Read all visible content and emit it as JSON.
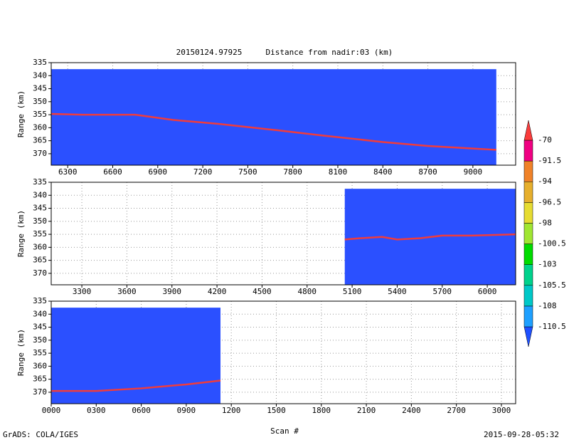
{
  "title": "20150124.97925     Distance from nadir:03 (km)",
  "x_label": "Scan #",
  "footer_left": "GrADS: COLA/IGES",
  "footer_right": "2015-09-28-05:32",
  "colorbar": {
    "levels": [
      -110.5,
      -108,
      -105.5,
      -103,
      -100.5,
      -98,
      -96.5,
      -94,
      -91.5,
      -70
    ],
    "colors": [
      "#1e50ff",
      "#1ea0ff",
      "#00c8c8",
      "#00d28c",
      "#00dc00",
      "#a0e632",
      "#e6dc32",
      "#e6af2d",
      "#f08228",
      "#f00082",
      "#fa3c3c"
    ]
  },
  "chart_data": [
    {
      "type": "line",
      "y_label": "Range (km)",
      "grid": true,
      "color": "#f03c3c",
      "field_color": "#2b50ff",
      "xlim": [
        6190,
        9285
      ],
      "ylim": [
        374.4,
        335
      ],
      "xticks": [
        6300,
        6600,
        6900,
        7200,
        7500,
        7800,
        8100,
        8400,
        8700,
        9000
      ],
      "yticks": [
        335,
        340,
        345,
        350,
        355,
        360,
        365,
        370
      ],
      "coverage": {
        "x": [
          6190,
          9156
        ],
        "y": [
          337.5,
          374.4
        ]
      },
      "x": [
        6190,
        6400,
        6750,
        7000,
        7300,
        7700,
        8000,
        8400,
        8700,
        9000,
        9156
      ],
      "values": [
        354.7,
        355,
        355,
        357,
        358.5,
        361,
        363,
        365.5,
        367,
        368,
        368.5
      ]
    },
    {
      "type": "line",
      "y_label": "Range (km)",
      "grid": true,
      "color": "#f03c3c",
      "field_color": "#2b50ff",
      "xlim": [
        3096,
        6189
      ],
      "ylim": [
        374.4,
        335
      ],
      "xticks": [
        3300,
        3600,
        3900,
        4200,
        4500,
        4800,
        5100,
        5400,
        5700,
        6000
      ],
      "yticks": [
        335,
        340,
        345,
        350,
        355,
        360,
        365,
        370
      ],
      "coverage": {
        "x": [
          5051,
          6189
        ],
        "y": [
          337.5,
          374.4
        ]
      },
      "x": [
        5051,
        5150,
        5300,
        5400,
        5550,
        5700,
        5900,
        6189
      ],
      "values": [
        357,
        356.5,
        356,
        357,
        356.5,
        355.5,
        355.5,
        355
      ],
      "xtick_note": null
    },
    {
      "type": "line",
      "y_label": "Range (km)",
      "grid": true,
      "color": "#f03c3c",
      "field_color": "#2b50ff",
      "xlim": [
        0,
        3095
      ],
      "ylim": [
        374.4,
        335
      ],
      "xticks": [
        {
          "value": 0,
          "label": "0000"
        },
        {
          "value": 300,
          "label": "0300"
        },
        {
          "value": 600,
          "label": "0600"
        },
        {
          "value": 900,
          "label": "0900"
        },
        1200,
        1500,
        1800,
        2100,
        2400,
        2700,
        3000
      ],
      "yticks": [
        335,
        340,
        345,
        350,
        355,
        360,
        365,
        370
      ],
      "coverage": {
        "x": [
          0,
          1128
        ],
        "y": [
          337.5,
          374.4
        ]
      },
      "x": [
        0,
        300,
        600,
        900,
        1128
      ],
      "values": [
        369.5,
        369.5,
        368.5,
        367,
        365.5
      ]
    }
  ]
}
